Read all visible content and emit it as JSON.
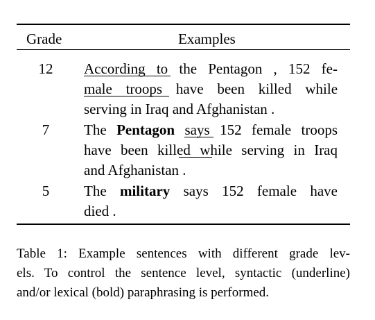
{
  "table": {
    "headers": {
      "grade": "Grade",
      "examples": "Examples"
    },
    "rows": [
      {
        "grade": "12",
        "lines": [
          [
            "According to",
            " the Pentagon , 152 fe-"
          ],
          [
            "male troops",
            " have been killed while"
          ],
          [
            "serving in Iraq and Afghanistan ."
          ]
        ]
      },
      {
        "grade": "7",
        "lines": [
          [
            "The ",
            "Pentagon",
            " ",
            "says",
            " 152 female troops"
          ],
          [
            "have been killed",
            " while serving in Iraq"
          ],
          [
            "and Afghanistan ."
          ]
        ]
      },
      {
        "grade": "5",
        "lines": [
          [
            "The ",
            "military",
            " says 152 female have"
          ],
          [
            "died ."
          ]
        ]
      }
    ]
  },
  "caption": {
    "line1": "Table 1: Example sentences with different grade lev-",
    "line2": "els. To control the sentence level, syntactic (underline)",
    "line3": "and/or lexical (bold) paraphrasing is performed."
  }
}
